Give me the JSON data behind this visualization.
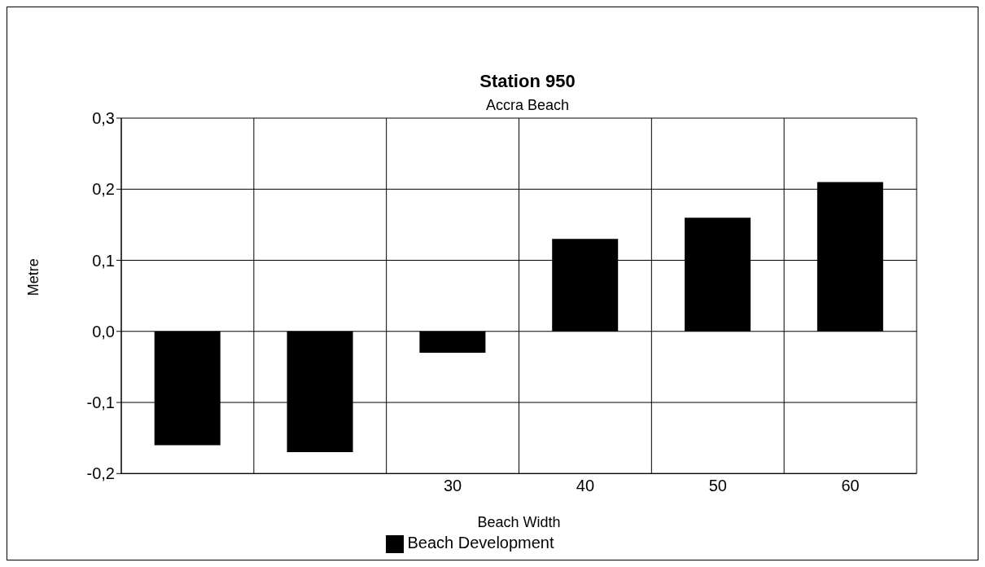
{
  "chart_data": {
    "type": "bar",
    "title": "Station 950",
    "subtitle": "Accra Beach",
    "xlabel": "Beach Width",
    "ylabel": "Metre",
    "categories": [
      null,
      null,
      "30",
      "40",
      "50",
      "60"
    ],
    "series": [
      {
        "name": "Beach Development",
        "color": "#000000",
        "values": [
          -0.16,
          -0.17,
          -0.03,
          0.13,
          0.16,
          0.21
        ]
      }
    ],
    "ylim": [
      -0.2,
      0.3
    ],
    "yticks": [
      {
        "value": -0.2,
        "label": "-0,2"
      },
      {
        "value": -0.1,
        "label": "-0,1"
      },
      {
        "value": 0,
        "label": "0,0"
      },
      {
        "value": 0.1,
        "label": "0,1"
      },
      {
        "value": 0.2,
        "label": "0,2"
      },
      {
        "value": 0.3,
        "label": "0,3"
      }
    ],
    "grid": true,
    "legend": "bottom"
  }
}
